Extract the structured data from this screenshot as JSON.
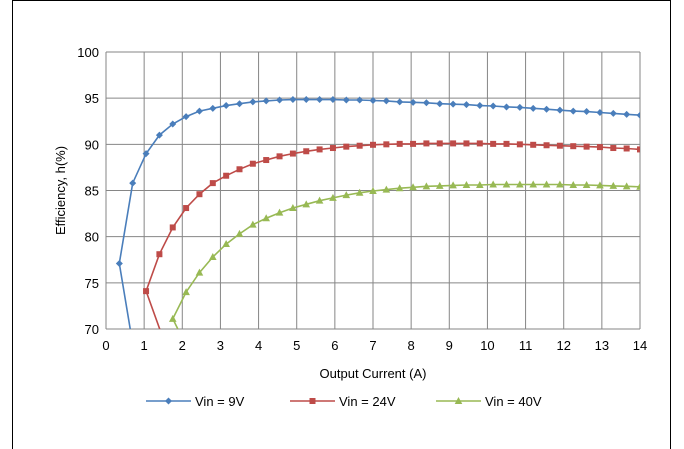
{
  "chart_data": {
    "type": "line",
    "xlabel": "Output Current (A)",
    "ylabel": "Efficiency, h(%)",
    "xlim": [
      0,
      14
    ],
    "ylim": [
      70,
      100
    ],
    "xticks": [
      "0",
      "1",
      "2",
      "3",
      "4",
      "5",
      "6",
      "7",
      "8",
      "9",
      "10",
      "11",
      "12",
      "13",
      "14"
    ],
    "yticks": [
      "70",
      "75",
      "80",
      "85",
      "90",
      "95",
      "100"
    ],
    "grid": true,
    "legend_position": "bottom",
    "series": [
      {
        "name": "Vin = 9V",
        "color": "#4a7ebb",
        "marker": "diamond",
        "x": [
          0.35,
          0.7,
          1.05,
          1.4,
          1.75,
          2.1,
          2.45,
          2.8,
          3.15,
          3.5,
          3.85,
          4.2,
          4.55,
          4.9,
          5.25,
          5.6,
          5.95,
          6.3,
          6.65,
          7.0,
          7.35,
          7.7,
          8.05,
          8.4,
          8.75,
          9.1,
          9.45,
          9.8,
          10.15,
          10.5,
          10.85,
          11.2,
          11.55,
          11.9,
          12.25,
          12.6,
          12.95,
          13.3,
          13.65,
          14.0
        ],
        "y": [
          77.1,
          85.8,
          89.0,
          91.0,
          92.2,
          93.0,
          93.6,
          93.9,
          94.2,
          94.4,
          94.6,
          94.7,
          94.8,
          94.85,
          94.85,
          94.85,
          94.85,
          94.8,
          94.8,
          94.75,
          94.7,
          94.6,
          94.55,
          94.5,
          94.4,
          94.35,
          94.3,
          94.2,
          94.15,
          94.05,
          94.0,
          93.9,
          93.8,
          93.7,
          93.6,
          93.55,
          93.45,
          93.35,
          93.25,
          93.15
        ]
      },
      {
        "name": "Vin = 24V",
        "color": "#be4b48",
        "marker": "square",
        "x": [
          1.05,
          1.4,
          1.75,
          2.1,
          2.45,
          2.8,
          3.15,
          3.5,
          3.85,
          4.2,
          4.55,
          4.9,
          5.25,
          5.6,
          5.95,
          6.3,
          6.65,
          7.0,
          7.35,
          7.7,
          8.05,
          8.4,
          8.75,
          9.1,
          9.45,
          9.8,
          10.15,
          10.5,
          10.85,
          11.2,
          11.55,
          11.9,
          12.25,
          12.6,
          12.95,
          13.3,
          13.65,
          14.0
        ],
        "y": [
          74.1,
          78.1,
          81.0,
          83.1,
          84.6,
          85.8,
          86.6,
          87.3,
          87.9,
          88.3,
          88.7,
          89.0,
          89.25,
          89.45,
          89.6,
          89.75,
          89.85,
          89.95,
          90.0,
          90.05,
          90.05,
          90.1,
          90.1,
          90.1,
          90.1,
          90.1,
          90.05,
          90.05,
          90.0,
          89.95,
          89.9,
          89.85,
          89.8,
          89.75,
          89.7,
          89.6,
          89.55,
          89.45
        ]
      },
      {
        "name": "Vin = 40V",
        "color": "#98b954",
        "marker": "triangle",
        "x": [
          1.75,
          2.1,
          2.45,
          2.8,
          3.15,
          3.5,
          3.85,
          4.2,
          4.55,
          4.9,
          5.25,
          5.6,
          5.95,
          6.3,
          6.65,
          7.0,
          7.35,
          7.7,
          8.05,
          8.4,
          8.75,
          9.1,
          9.45,
          9.8,
          10.15,
          10.5,
          10.85,
          11.2,
          11.55,
          11.9,
          12.25,
          12.6,
          12.95,
          13.3,
          13.65,
          14.0
        ],
        "y": [
          71.1,
          74.0,
          76.1,
          77.8,
          79.2,
          80.3,
          81.3,
          82.0,
          82.6,
          83.1,
          83.5,
          83.9,
          84.2,
          84.5,
          84.75,
          84.95,
          85.1,
          85.25,
          85.35,
          85.45,
          85.5,
          85.55,
          85.6,
          85.6,
          85.65,
          85.65,
          85.65,
          85.65,
          85.65,
          85.65,
          85.6,
          85.6,
          85.55,
          85.5,
          85.45,
          85.4
        ]
      }
    ]
  }
}
